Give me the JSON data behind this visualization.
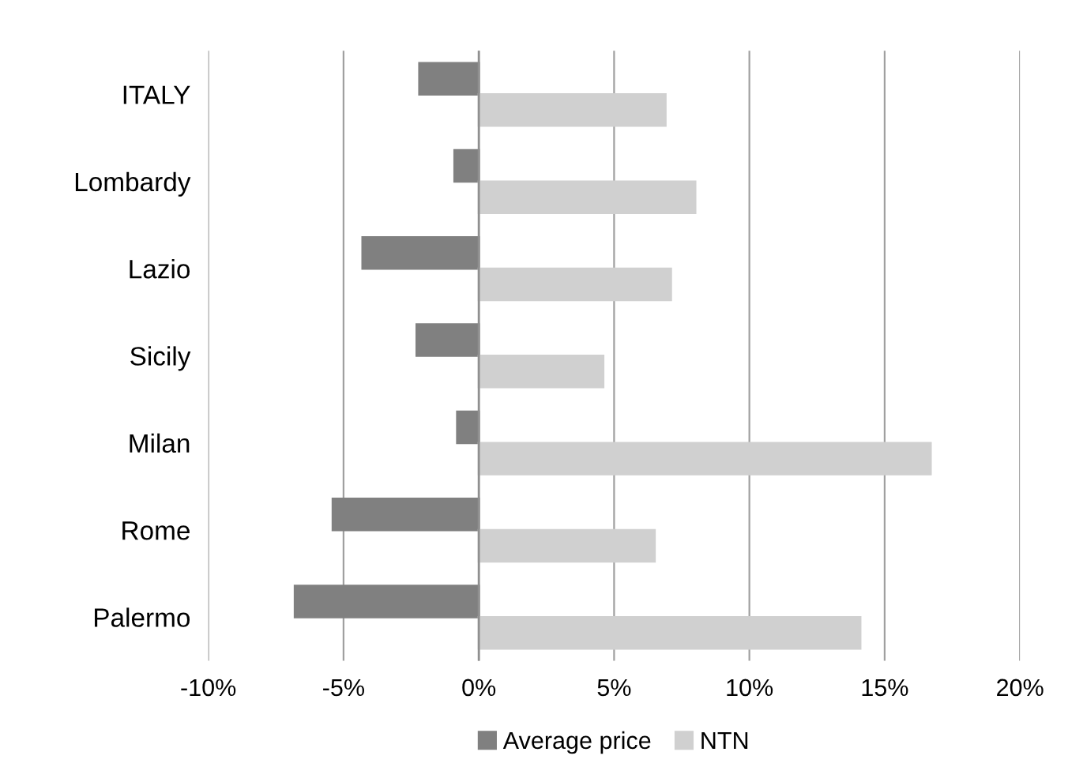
{
  "chart_data": {
    "type": "bar",
    "orientation": "horizontal",
    "categories": [
      "ITALY",
      "Lombardy",
      "Lazio",
      "Sicily",
      "Milan",
      "Rome",
      "Palermo"
    ],
    "series": [
      {
        "name": "Average price",
        "color": "#808080",
        "values": [
          -2.2,
          -0.9,
          -4.3,
          -2.3,
          -0.8,
          -5.4,
          -6.8
        ]
      },
      {
        "name": "NTN",
        "color": "#d0d0d0",
        "values": [
          6.9,
          8.0,
          7.1,
          4.6,
          16.7,
          6.5,
          14.1
        ]
      }
    ],
    "xlim": [
      -10,
      20
    ],
    "xticks": [
      {
        "value": -10,
        "label": "-10%"
      },
      {
        "value": -5,
        "label": "-5%"
      },
      {
        "value": 0,
        "label": "0%"
      },
      {
        "value": 5,
        "label": "5%"
      },
      {
        "value": 10,
        "label": "10%"
      },
      {
        "value": 15,
        "label": "15%"
      },
      {
        "value": 20,
        "label": "20%"
      }
    ],
    "grid": "x",
    "legend": "bottom"
  }
}
